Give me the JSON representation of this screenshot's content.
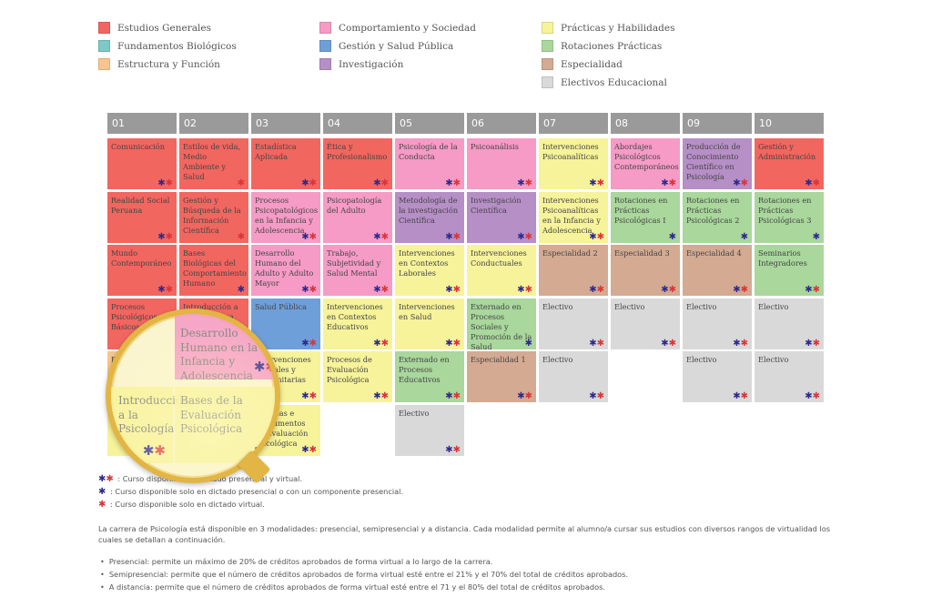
{
  "legend": [
    {
      "label": "Estudios Generales",
      "color": "#f26660",
      "col": 0,
      "row": 0
    },
    {
      "label": "Fundamentos Biológicos",
      "color": "#7cc9c7",
      "col": 0,
      "row": 1
    },
    {
      "label": "Estructura y Función",
      "color": "#f9c58f",
      "col": 0,
      "row": 2
    },
    {
      "label": "Comportamiento y Sociedad",
      "color": "#f59bc6",
      "col": 1,
      "row": 0
    },
    {
      "label": "Gestión y Salud Pública",
      "color": "#6f9fd9",
      "col": 1,
      "row": 1
    },
    {
      "label": "Investigación",
      "color": "#b68fc7",
      "col": 1,
      "row": 2
    },
    {
      "label": "Prácticas y Habilidades",
      "color": "#f7f39a",
      "col": 2,
      "row": 0
    },
    {
      "label": "Rotaciones Prácticas",
      "color": "#a9d79c",
      "col": 2,
      "row": 1
    },
    {
      "label": "Especialidad",
      "color": "#d4aa93",
      "col": 2,
      "row": 2
    },
    {
      "label": "Electivos Educacional",
      "color": "#d9d9d9",
      "col": 2,
      "row": 3
    }
  ],
  "columns": [
    "01",
    "02",
    "03",
    "04",
    "05",
    "06",
    "07",
    "08",
    "09",
    "10"
  ],
  "courses": [
    {
      "col": 0,
      "row": 0,
      "label": "Comunicación",
      "cat": "estudios",
      "stars": "br"
    },
    {
      "col": 0,
      "row": 1,
      "label": "Realidad Social Peruana",
      "cat": "estudios",
      "stars": "br"
    },
    {
      "col": 0,
      "row": 2,
      "label": "Mundo Contemporáneo",
      "cat": "estudios",
      "stars": "br"
    },
    {
      "col": 0,
      "row": 3,
      "label": "Procesos Psicológicos Básicos",
      "cat": "estudios",
      "stars": "br"
    },
    {
      "col": 0,
      "row": 4,
      "label": "Bases del Desarrollo Humano",
      "cat": "estructura",
      "stars": "br"
    },
    {
      "col": 0,
      "row": 5,
      "label": "Introducción a la Psicología",
      "cat": "practicas",
      "stars": "br"
    },
    {
      "col": 1,
      "row": 0,
      "label": "Estilos de vida, Medio Ambiente y Salud",
      "cat": "estudios",
      "stars": "r"
    },
    {
      "col": 1,
      "row": 1,
      "label": "Gestión y Búsqueda de la Información Científica",
      "cat": "estudios",
      "stars": "r"
    },
    {
      "col": 1,
      "row": 2,
      "label": "Bases Biológicas del Comportamiento Humano",
      "cat": "estudios",
      "stars": "b"
    },
    {
      "col": 1,
      "row": 3,
      "label": "Introducción a la Estadística",
      "cat": "estudios",
      "stars": "br"
    },
    {
      "col": 1,
      "row": 4,
      "label": "Desarrollo Humano en la Infancia y Adolescencia",
      "cat": "comportamiento",
      "stars": "br"
    },
    {
      "col": 1,
      "row": 5,
      "label": "Bases de la Evaluación Psicológica",
      "cat": "practicas",
      "stars": "br"
    },
    {
      "col": 2,
      "row": 0,
      "label": "Estadística Aplicada",
      "cat": "estudios",
      "stars": "br"
    },
    {
      "col": 2,
      "row": 1,
      "label": "Procesos Psicopatológicos en la Infancia y Adolescencia",
      "cat": "comportamiento",
      "stars": "br"
    },
    {
      "col": 2,
      "row": 2,
      "label": "Desarrollo Humano del Adulto y Adulto Mayor",
      "cat": "comportamiento",
      "stars": "br"
    },
    {
      "col": 2,
      "row": 3,
      "label": "Salud Pública",
      "cat": "gestion",
      "stars": "br"
    },
    {
      "col": 2,
      "row": 4,
      "label": "Intervenciones Grupales y Comunitarias",
      "cat": "practicas",
      "stars": "br"
    },
    {
      "col": 2,
      "row": 5,
      "label": "Técnicas e Instrumentos de Evaluación Psicológica",
      "cat": "practicas",
      "stars": "br"
    },
    {
      "col": 3,
      "row": 0,
      "label": "Ética y Profesionalismo",
      "cat": "estudios",
      "stars": "br"
    },
    {
      "col": 3,
      "row": 1,
      "label": "Psicopatología del Adulto",
      "cat": "comportamiento",
      "stars": "br"
    },
    {
      "col": 3,
      "row": 2,
      "label": "Trabajo, Subjetividad y Salud Mental",
      "cat": "comportamiento",
      "stars": "br"
    },
    {
      "col": 3,
      "row": 3,
      "label": "Intervenciones en Contextos Educativos",
      "cat": "practicas",
      "stars": "br"
    },
    {
      "col": 3,
      "row": 4,
      "label": "Procesos de Evaluación Psicológica",
      "cat": "practicas",
      "stars": "br"
    },
    {
      "col": 4,
      "row": 0,
      "label": "Psicología de la Conducta",
      "cat": "comportamiento",
      "stars": "br"
    },
    {
      "col": 4,
      "row": 1,
      "label": "Metodología de la investigación Científica",
      "cat": "investigacion",
      "stars": "br"
    },
    {
      "col": 4,
      "row": 2,
      "label": "Intervenciones en Contextos Laborales",
      "cat": "practicas",
      "stars": "br"
    },
    {
      "col": 4,
      "row": 3,
      "label": "Intervenciones en Salud",
      "cat": "practicas",
      "stars": "br"
    },
    {
      "col": 4,
      "row": 4,
      "label": "Externado en Procesos Educativos",
      "cat": "rotaciones",
      "stars": "br"
    },
    {
      "col": 4,
      "row": 5,
      "label": "Electivo",
      "cat": "electivo",
      "stars": "br"
    },
    {
      "col": 5,
      "row": 0,
      "label": "Psicoanálisis",
      "cat": "comportamiento",
      "stars": "br"
    },
    {
      "col": 5,
      "row": 1,
      "label": "Investigación Científica",
      "cat": "investigacion",
      "stars": "br"
    },
    {
      "col": 5,
      "row": 2,
      "label": "Intervenciones Conductuales",
      "cat": "practicas",
      "stars": "br"
    },
    {
      "col": 5,
      "row": 3,
      "label": "Externado en Procesos Sociales y Promoción de la Salud",
      "cat": "rotaciones",
      "stars": "b"
    },
    {
      "col": 5,
      "row": 4,
      "label": "Especialidad 1",
      "cat": "especialidad",
      "stars": "br"
    },
    {
      "col": 6,
      "row": 0,
      "label": "Intervenciones Psicoanalíticas",
      "cat": "practicas",
      "stars": "br"
    },
    {
      "col": 6,
      "row": 1,
      "label": "Intervenciones Psicoanalíticas en la Infancia y Adolescencia",
      "cat": "practicas",
      "stars": "br"
    },
    {
      "col": 6,
      "row": 2,
      "label": "Especialidad 2",
      "cat": "especialidad",
      "stars": "br"
    },
    {
      "col": 6,
      "row": 3,
      "label": "Electivo",
      "cat": "electivo",
      "stars": "br"
    },
    {
      "col": 6,
      "row": 4,
      "label": "Electivo",
      "cat": "electivo",
      "stars": "br"
    },
    {
      "col": 7,
      "row": 0,
      "label": "Abordajes Psicológicos Contemporáneos",
      "cat": "comportamiento",
      "stars": "br"
    },
    {
      "col": 7,
      "row": 1,
      "label": "Rotaciones en Prácticas Psicológicas I",
      "cat": "rotaciones",
      "stars": "b"
    },
    {
      "col": 7,
      "row": 2,
      "label": "Especialidad 3",
      "cat": "especialidad",
      "stars": "br"
    },
    {
      "col": 7,
      "row": 3,
      "label": "Electivo",
      "cat": "electivo",
      "stars": "br"
    },
    {
      "col": 8,
      "row": 0,
      "label": "Producción de Conocimiento Científico en Psicología",
      "cat": "investigacion",
      "stars": "br"
    },
    {
      "col": 8,
      "row": 1,
      "label": "Rotaciones en Prácticas Psicológicas 2",
      "cat": "rotaciones",
      "stars": "b"
    },
    {
      "col": 8,
      "row": 2,
      "label": "Especialidad 4",
      "cat": "especialidad",
      "stars": "br"
    },
    {
      "col": 8,
      "row": 3,
      "label": "Electivo",
      "cat": "electivo",
      "stars": "br"
    },
    {
      "col": 8,
      "row": 4,
      "label": "Electivo",
      "cat": "electivo",
      "stars": "br"
    },
    {
      "col": 9,
      "row": 0,
      "label": "Gestión y Administración",
      "cat": "estudios",
      "stars": "br"
    },
    {
      "col": 9,
      "row": 1,
      "label": "Rotaciones en Prácticas Psicológicas 3",
      "cat": "rotaciones",
      "stars": "b"
    },
    {
      "col": 9,
      "row": 2,
      "label": "Seminarios Integradores",
      "cat": "rotaciones",
      "stars": "br"
    },
    {
      "col": 9,
      "row": 3,
      "label": "Electivo",
      "cat": "electivo",
      "stars": "br"
    },
    {
      "col": 9,
      "row": 4,
      "label": "Electivo",
      "cat": "electivo",
      "stars": "br"
    }
  ],
  "category_colors": {
    "estudios": "#f26660",
    "comportamiento": "#f59bc6",
    "practicas": "#f7f39a",
    "rotaciones": "#a9d79c",
    "especialidad": "#d4aa93",
    "electivo": "#d9d9d9",
    "investigacion": "#b68fc7",
    "gestion": "#6f9fd9",
    "estructura": "#f9c58f"
  },
  "magnifier": [
    {
      "label": "Desarrollo Humano en la Infancia y Adolescencia",
      "cat": "comportamiento",
      "stars": "br"
    },
    {
      "label": "Introducción a la Psicología",
      "cat": "practicas",
      "stars": "br"
    },
    {
      "label": "Bases de la Evaluación Psicológica",
      "cat": "practicas",
      "stars": "br"
    }
  ],
  "notes": [
    {
      "stars": "br",
      "text": ": Curso disponible en dictado presencial y virtual."
    },
    {
      "stars": "b",
      "text": ": Curso disponible solo en dictado presencial o con un componente presencial."
    },
    {
      "stars": "r",
      "text": ": Curso disponible solo en dictado virtual."
    }
  ],
  "paragraph": "La carrera de Psicología está disponible en 3 modalidades: presencial, semipresencial y a distancia. Cada modalidad permite al alumno/a cursar sus estudios con diversos rangos de virtualidad los cuales se detallan a continuación.",
  "bullets": [
    "Presencial: permite un máximo de 20% de créditos aprobados de forma virtual a lo largo de la carrera.",
    "Semipresencial: permite que el número de créditos aprobados de forma virtual esté entre el 21% y el 70% del total de créditos aprobados.",
    "A distancia: permite que el número de créditos aprobados de forma virtual esté entre el 71 y el 80% del total de créditos aprobados."
  ]
}
